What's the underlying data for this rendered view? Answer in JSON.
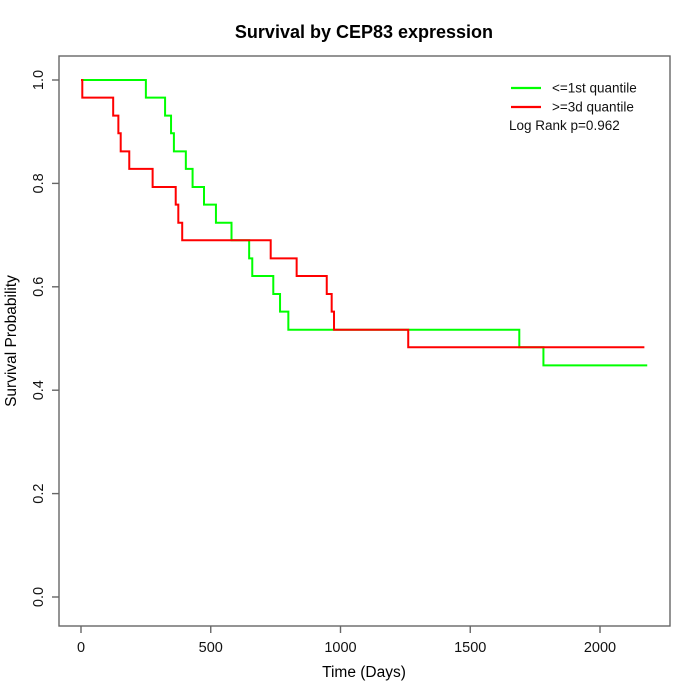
{
  "figure": {
    "background": "#ffffff"
  },
  "chart_data": {
    "type": "line",
    "subtype": "kaplan_meier_step_survival",
    "title": "Survival by CEP83 expression",
    "xlabel": "Time (Days)",
    "ylabel": "Survival Probability",
    "xlim": [
      0,
      2200
    ],
    "ylim": [
      0.0,
      1.0
    ],
    "grid": false,
    "legend_position": "top-right",
    "annotation": "Log Rank p=0.962",
    "axis_color": "#666666",
    "text_color": "#000000",
    "xticks": [
      0,
      500,
      1000,
      1500,
      2000
    ],
    "xtick_labels": [
      "0",
      "500",
      "1000",
      "1500",
      "2000"
    ],
    "yticks": [
      0.0,
      0.2,
      0.4,
      0.6,
      0.8,
      1.0
    ],
    "ytick_labels": [
      "0.0",
      "0.2",
      "0.4",
      "0.6",
      "0.8",
      "1.0"
    ],
    "legend": [
      {
        "label": "<=1st quantile",
        "color": "#00ff00"
      },
      {
        "label": ">=3d quantile",
        "color": "#ff0000"
      }
    ],
    "series": [
      {
        "name": "<=1st quantile",
        "color": "#00ff00",
        "end_time": 2182,
        "steps": [
          [
            0,
            1.0
          ],
          [
            250,
            0.966
          ],
          [
            324,
            0.931
          ],
          [
            347,
            0.897
          ],
          [
            358,
            0.862
          ],
          [
            404,
            0.828
          ],
          [
            430,
            0.793
          ],
          [
            474,
            0.759
          ],
          [
            520,
            0.724
          ],
          [
            580,
            0.69
          ],
          [
            648,
            0.655
          ],
          [
            660,
            0.621
          ],
          [
            741,
            0.586
          ],
          [
            767,
            0.552
          ],
          [
            799,
            0.517
          ],
          [
            1689,
            0.483
          ],
          [
            1782,
            0.448
          ]
        ]
      },
      {
        "name": ">=3d quantile",
        "color": "#ff0000",
        "end_time": 2171,
        "steps": [
          [
            0,
            1.0
          ],
          [
            5,
            0.966
          ],
          [
            124,
            0.931
          ],
          [
            144,
            0.897
          ],
          [
            153,
            0.862
          ],
          [
            186,
            0.828
          ],
          [
            276,
            0.793
          ],
          [
            365,
            0.759
          ],
          [
            375,
            0.724
          ],
          [
            390,
            0.69
          ],
          [
            731,
            0.655
          ],
          [
            831,
            0.621
          ],
          [
            947,
            0.586
          ],
          [
            966,
            0.552
          ],
          [
            975,
            0.517
          ],
          [
            1261,
            0.483
          ]
        ]
      }
    ]
  }
}
